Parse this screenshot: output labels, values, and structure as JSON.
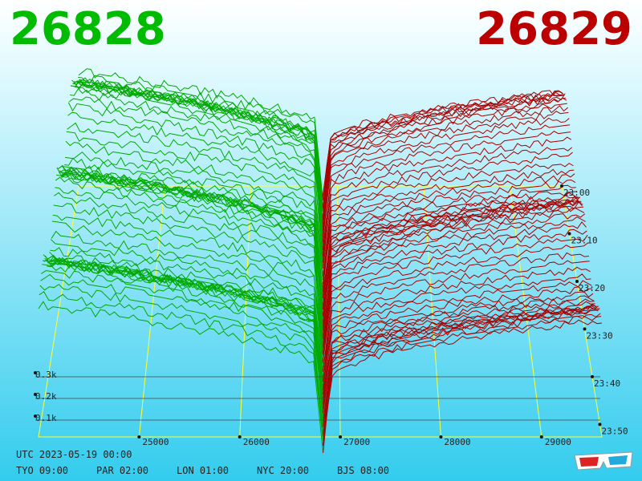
{
  "header": {
    "bid_price": "26828",
    "ask_price": "26829"
  },
  "colors": {
    "bid": "#00aa00",
    "ask": "#aa0000",
    "bg_top": "#ffffff",
    "bg_bottom": "#33ccee",
    "grid": "#ffff33",
    "base": "#aa44ff"
  },
  "chart_data": {
    "type": "3d-depth-chart",
    "xlabel": "",
    "ylabel": "",
    "x_ticks": [
      "25000",
      "26000",
      "27000",
      "28000",
      "29000"
    ],
    "y_ticks": [
      "0.1k",
      "0.2k",
      "0.3k"
    ],
    "time_ticks": [
      "23:00",
      "23:10",
      "23:20",
      "23:30",
      "23:40",
      "23:50"
    ],
    "mid_price": 26828.5,
    "xlim": [
      24000,
      29600
    ],
    "n_snapshots": 60
  },
  "footer": {
    "utc": "UTC 2023-05-19 00:00",
    "clocks": [
      "TYO 09:00",
      "PAR 02:00",
      "LON 01:00",
      "NYC 20:00",
      "BJS 08:00"
    ]
  },
  "glasses_icon": "3d-glasses-icon"
}
